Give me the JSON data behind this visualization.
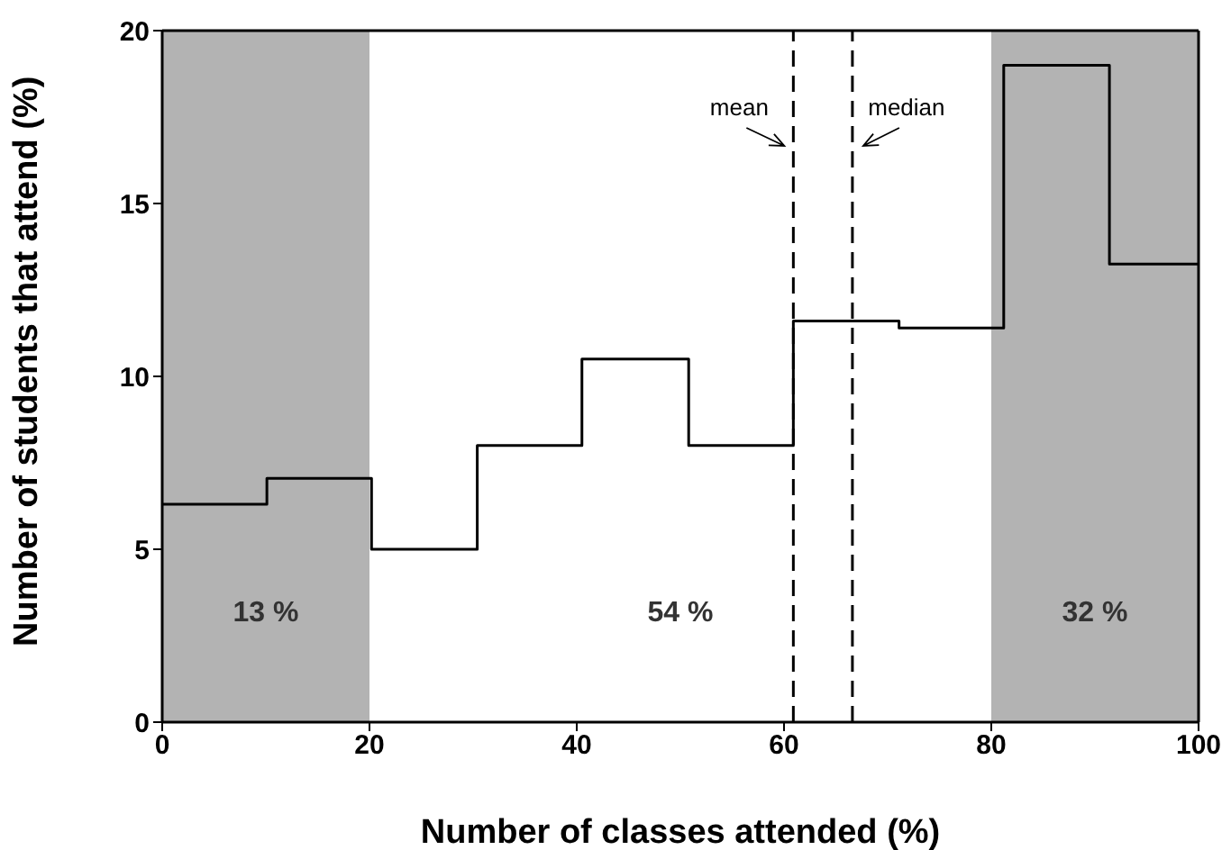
{
  "chart_data": {
    "type": "histogram",
    "xlabel": "Number of classes attended (%)",
    "ylabel": "Number of students that attend (%)",
    "bins": [
      0,
      10.1,
      20.2,
      30.4,
      40.5,
      50.8,
      60.9,
      71.1,
      81.2,
      91.4,
      100
    ],
    "values": [
      6.3,
      7.05,
      5.0,
      8.0,
      10.5,
      8.0,
      11.6,
      11.4,
      19.0,
      13.25
    ],
    "color": "#000000",
    "xlim": [
      0,
      100
    ],
    "xticks": [
      0,
      20,
      40,
      60,
      80,
      100
    ],
    "ylim": [
      0,
      20
    ],
    "yticks": [
      0,
      5,
      10,
      15,
      20
    ],
    "bands": [
      {
        "axis": "x",
        "from": 0,
        "to": 20,
        "color": "#b3b3b3",
        "label": "13 %"
      },
      {
        "axis": "x",
        "from": 80,
        "to": 100,
        "color": "#b3b3b3",
        "label": "32 %"
      }
    ],
    "ref_lines": [
      {
        "axis": "x",
        "value": 60.9,
        "label": "mean",
        "line_style": "dashed",
        "color": "#000000"
      },
      {
        "axis": "x",
        "value": 66.6,
        "label": "median",
        "line_style": "dashed",
        "color": "#000000"
      }
    ],
    "annotations": [
      "54 %"
    ]
  }
}
